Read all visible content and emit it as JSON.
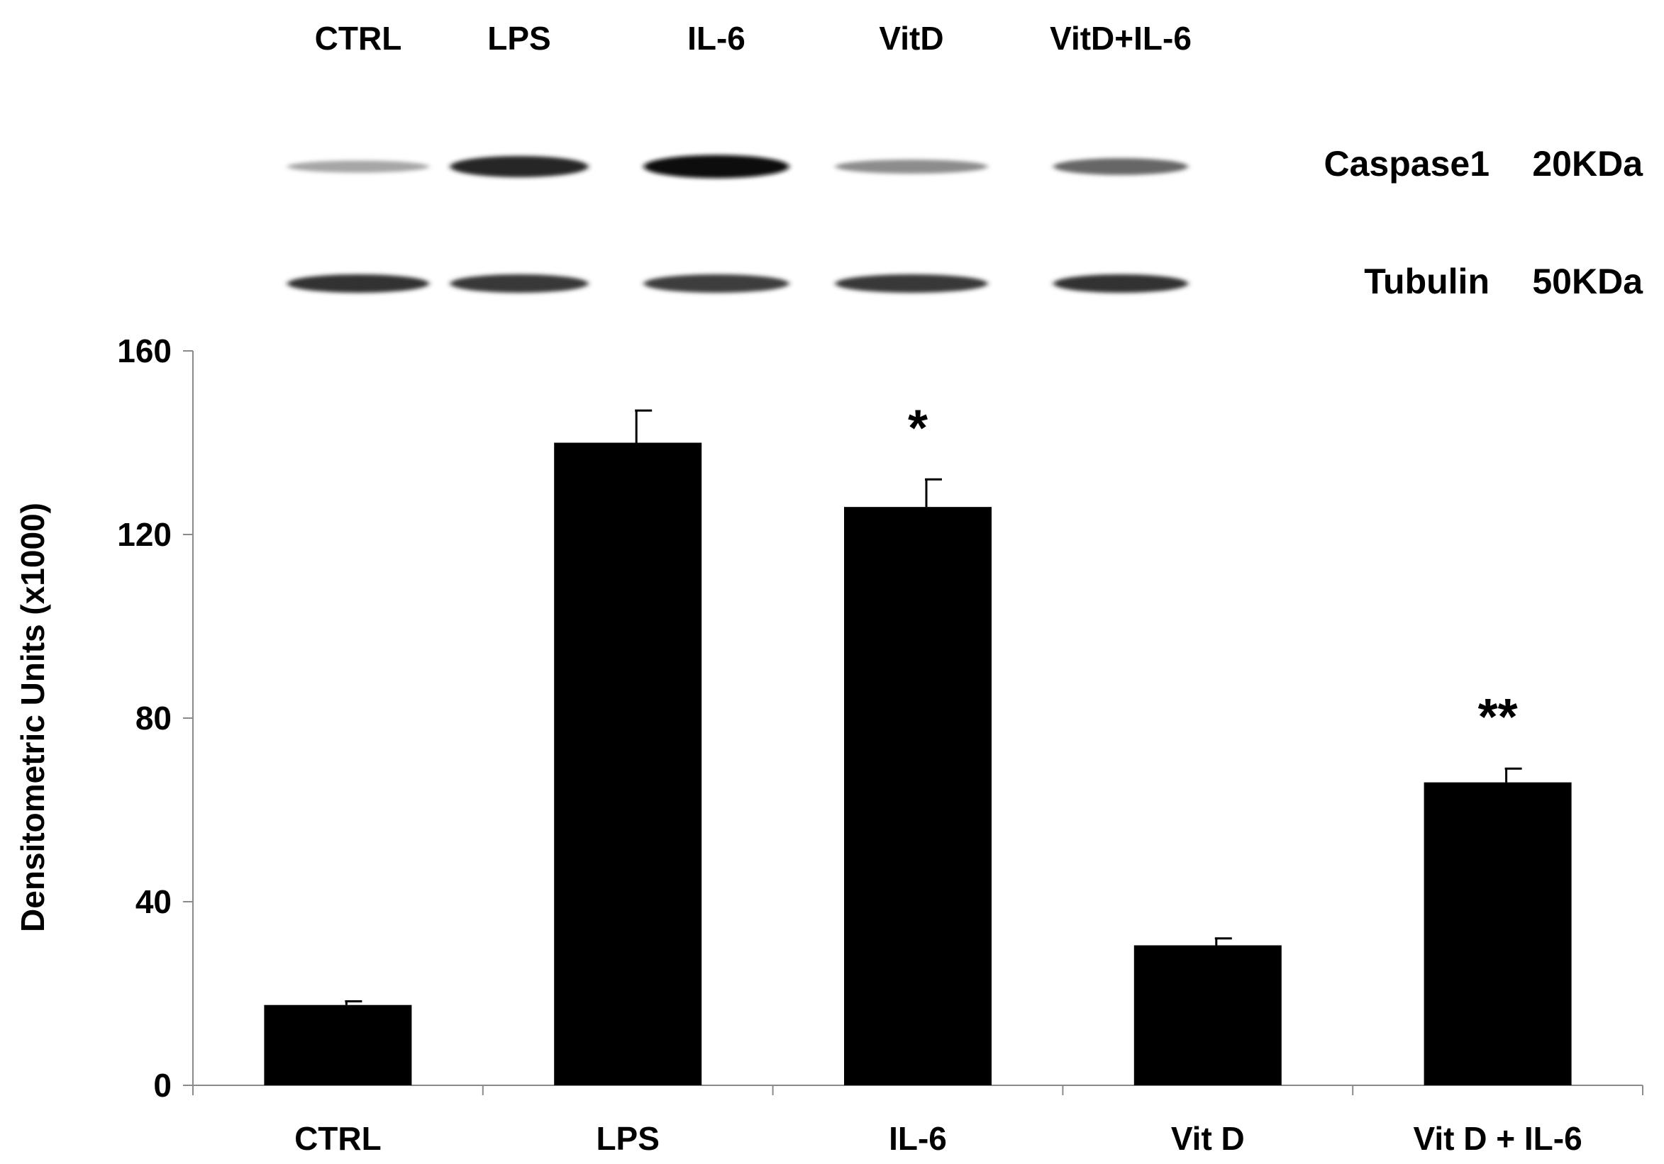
{
  "blot": {
    "lanes": [
      "CTRL",
      "LPS",
      "IL-6",
      "VitD",
      "VitD+IL-6"
    ],
    "rows": [
      {
        "protein": "Caspase1",
        "size": "20KDa",
        "intensities": [
          0.35,
          0.85,
          0.95,
          0.45,
          0.6
        ]
      },
      {
        "protein": "Tubulin",
        "size": "50KDa",
        "intensities": [
          0.8,
          0.78,
          0.76,
          0.78,
          0.8
        ]
      }
    ]
  },
  "chart_data": {
    "type": "bar",
    "categories": [
      "CTRL",
      "LPS",
      "IL-6",
      "Vit D",
      "Vit D + IL-6"
    ],
    "values": [
      17.5,
      140,
      126,
      30.5,
      66
    ],
    "errors": [
      0.8,
      7,
      6,
      1.5,
      3
    ],
    "annotations": [
      "",
      "",
      "*",
      "",
      "**"
    ],
    "ylabel": "Densitometric Units (x1000)",
    "xlabel": "",
    "title": "",
    "ylim": [
      0,
      160
    ],
    "yticks": [
      0,
      40,
      80,
      120,
      160
    ],
    "bar_color": "#000000",
    "grid": false
  }
}
